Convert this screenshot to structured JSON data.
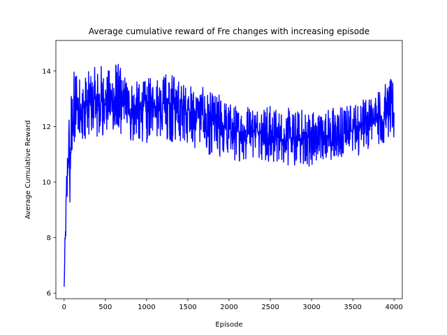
{
  "chart_data": {
    "type": "line",
    "title": "Average cumulative reward of Fre changes with increasing episode",
    "xlabel": "Episode",
    "ylabel": "Average Cumulative Reward",
    "xlim": [
      -100,
      4100
    ],
    "ylim": [
      5.8,
      15.1
    ],
    "xticks": [
      0,
      500,
      1000,
      1500,
      2000,
      2500,
      3000,
      3500,
      4000
    ],
    "yticks": [
      6,
      8,
      10,
      12,
      14
    ],
    "grid": false,
    "legend": "none",
    "colors": {
      "line": "#0000ff",
      "axes": "#000000",
      "background": "#ffffff"
    },
    "series": [
      {
        "x": [
          0,
          10,
          20,
          30,
          40,
          50,
          60,
          70,
          80,
          90,
          100,
          110,
          120,
          130,
          140,
          150,
          175,
          200,
          250,
          300,
          350,
          400,
          450,
          500,
          550,
          600,
          650,
          700,
          800,
          900,
          1000,
          1100,
          1200,
          1300,
          1400,
          1500,
          1600,
          1700,
          1800,
          1900,
          2000,
          2100,
          2200,
          2300,
          2400,
          2500,
          2600,
          2700,
          2800,
          2900,
          3000,
          3100,
          3200,
          3300,
          3400,
          3500,
          3600,
          3700,
          3800,
          3900,
          4000
        ],
        "y": [
          6.2,
          7.6,
          8.3,
          9.6,
          10.3,
          10.9,
          11.3,
          10.1,
          11.8,
          12.0,
          12.2,
          12.4,
          12.5,
          12.6,
          12.6,
          12.7,
          12.7,
          12.6,
          12.7,
          12.8,
          12.9,
          12.9,
          12.9,
          12.9,
          12.9,
          13.0,
          12.9,
          12.8,
          12.7,
          12.6,
          12.7,
          12.8,
          12.9,
          12.8,
          12.7,
          12.6,
          12.5,
          12.4,
          12.2,
          12.1,
          11.9,
          11.8,
          11.8,
          11.8,
          11.8,
          11.7,
          11.6,
          11.5,
          11.5,
          11.6,
          11.6,
          11.6,
          11.7,
          11.7,
          11.8,
          11.9,
          12.0,
          12.2,
          12.3,
          12.4,
          12.5
        ],
        "range_min": [
          6.2,
          6.7,
          7.0,
          8.6,
          9.2,
          9.6,
          10.0,
          9.2,
          10.4,
          10.8,
          11.0,
          11.2,
          11.3,
          11.4,
          11.4,
          11.5,
          11.6,
          11.5,
          11.5,
          11.7,
          11.7,
          11.6,
          11.5,
          11.8,
          11.8,
          11.9,
          11.7,
          11.6,
          11.5,
          11.5,
          11.4,
          11.6,
          11.6,
          11.4,
          11.4,
          11.3,
          11.2,
          11.0,
          11.0,
          10.9,
          10.8,
          10.7,
          10.8,
          10.8,
          10.8,
          10.6,
          10.6,
          10.3,
          10.5,
          10.6,
          10.5,
          10.7,
          10.7,
          10.8,
          10.9,
          10.9,
          11.0,
          11.2,
          11.3,
          11.4,
          11.5
        ],
        "range_max": [
          6.4,
          8.0,
          9.4,
          10.8,
          11.6,
          12.3,
          12.8,
          11.3,
          13.4,
          13.5,
          13.8,
          13.9,
          14.1,
          14.1,
          14.7,
          14.7,
          14.0,
          13.8,
          13.9,
          14.0,
          14.1,
          14.2,
          14.3,
          14.0,
          14.1,
          14.7,
          14.4,
          14.0,
          13.8,
          13.6,
          13.7,
          13.9,
          14.0,
          14.0,
          13.7,
          13.5,
          13.5,
          13.4,
          13.2,
          13.2,
          12.9,
          12.8,
          12.9,
          12.9,
          12.9,
          12.8,
          12.7,
          12.7,
          12.6,
          12.7,
          12.7,
          12.6,
          12.7,
          12.8,
          12.8,
          12.9,
          13.0,
          13.2,
          13.4,
          13.6,
          13.8
        ]
      }
    ]
  }
}
